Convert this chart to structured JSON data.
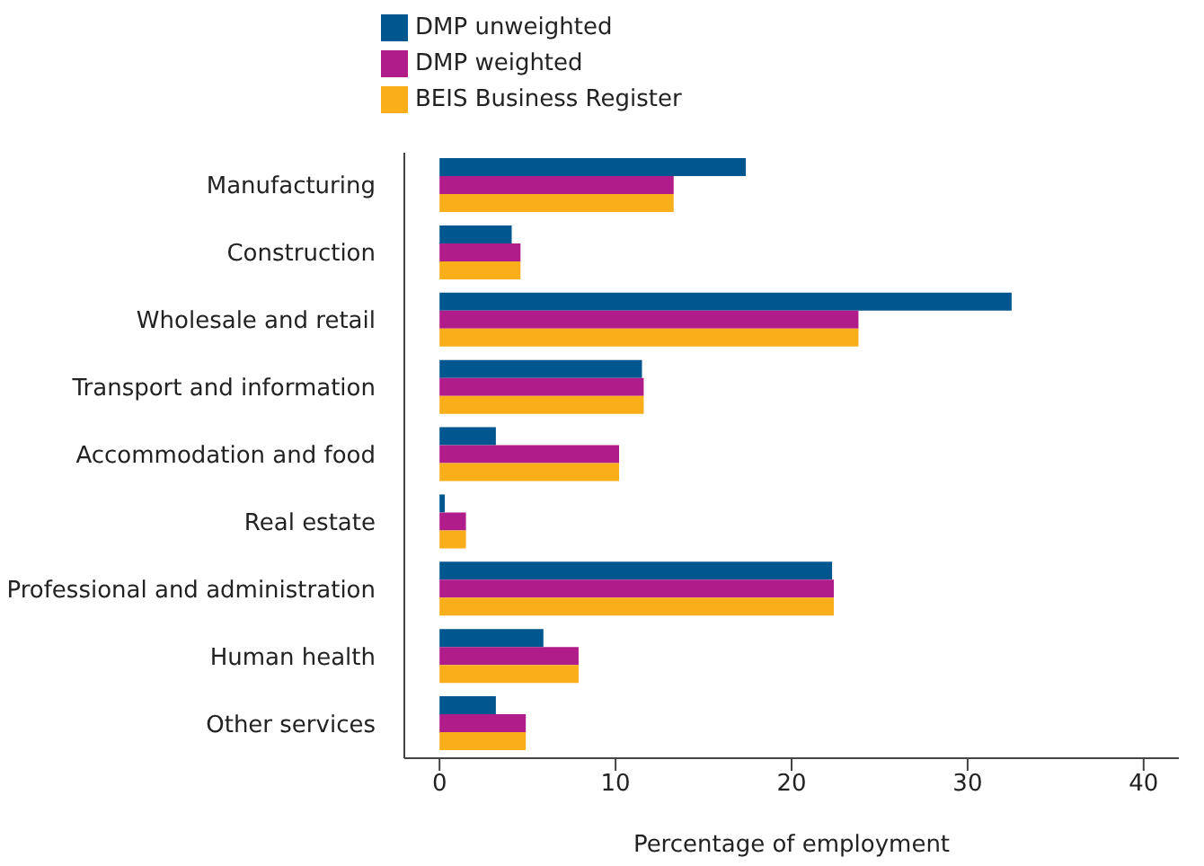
{
  "chart_data": {
    "type": "bar",
    "orientation": "horizontal",
    "xlabel": "Percentage of employment",
    "categories": [
      "Manufacturing",
      "Construction",
      "Wholesale and retail",
      "Transport and information",
      "Accommodation and food",
      "Real estate",
      "Professional and administration",
      "Human health",
      "Other services"
    ],
    "series": [
      {
        "name": "DMP unweighted",
        "color": "#00568e",
        "values": [
          17.4,
          4.1,
          32.5,
          11.5,
          3.2,
          0.3,
          22.3,
          5.9,
          3.2
        ]
      },
      {
        "name": "DMP weighted",
        "color": "#b01c8a",
        "values": [
          13.3,
          4.6,
          23.8,
          11.6,
          10.2,
          1.5,
          22.4,
          7.9,
          4.9
        ]
      },
      {
        "name": "BEIS Business Register",
        "color": "#f9ae1a",
        "values": [
          13.3,
          4.6,
          23.8,
          11.6,
          10.2,
          1.5,
          22.4,
          7.9,
          4.9
        ]
      }
    ],
    "xlim": [
      -2,
      42
    ],
    "xticks": [
      0,
      10,
      20,
      30,
      40
    ],
    "legend": "top left"
  }
}
